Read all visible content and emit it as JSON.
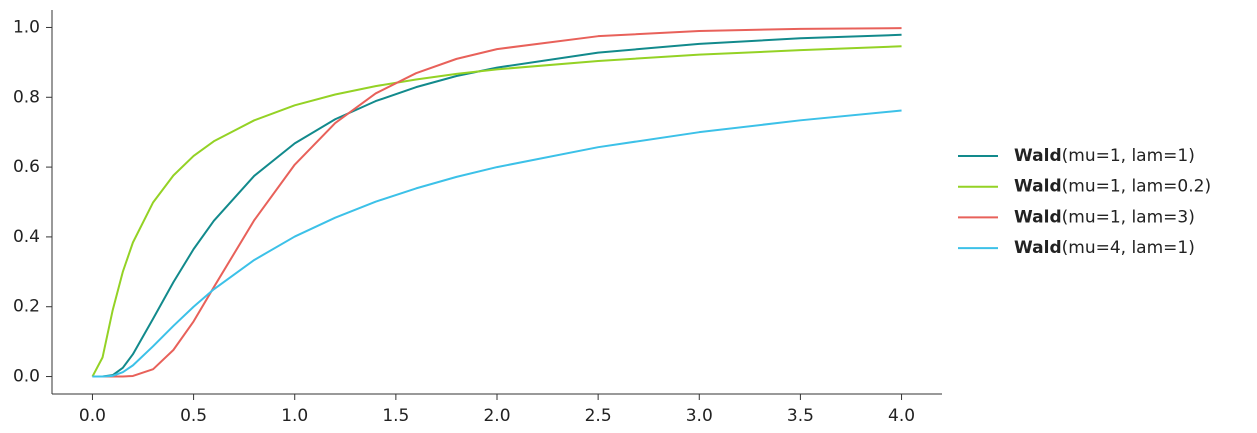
{
  "chart_data": {
    "type": "line",
    "x": [
      0,
      0.05,
      0.1,
      0.15,
      0.2,
      0.3,
      0.4,
      0.5,
      0.6,
      0.8,
      1.0,
      1.2,
      1.4,
      1.6,
      1.8,
      2.0,
      2.5,
      3.0,
      3.5,
      4.0
    ],
    "series": [
      {
        "name": "Wald(mu=1, lam=1)",
        "color": "#128a8c",
        "values": [
          0,
          2e-05,
          0.004,
          0.025,
          0.064,
          0.166,
          0.27,
          0.365,
          0.446,
          0.575,
          0.668,
          0.737,
          0.789,
          0.829,
          0.861,
          0.885,
          0.928,
          0.953,
          0.969,
          0.979
        ]
      },
      {
        "name": "Wald(mu=1, lam=0.2)",
        "color": "#94d225",
        "values": [
          0,
          0.055,
          0.19,
          0.3,
          0.384,
          0.499,
          0.576,
          0.632,
          0.674,
          0.734,
          0.777,
          0.808,
          0.832,
          0.851,
          0.867,
          0.88,
          0.904,
          0.922,
          0.935,
          0.946
        ]
      },
      {
        "name": "Wald(mu=1, lam=3)",
        "color": "#e8615a",
        "values": [
          0,
          0,
          0,
          0.0001,
          0.0017,
          0.021,
          0.076,
          0.158,
          0.256,
          0.448,
          0.607,
          0.726,
          0.811,
          0.869,
          0.91,
          0.938,
          0.975,
          0.99,
          0.996,
          0.998
        ]
      },
      {
        "name": "Wald(mu=4, lam=1)",
        "color": "#3cc1e8",
        "values": [
          0,
          0,
          0.002,
          0.0126,
          0.032,
          0.087,
          0.145,
          0.2,
          0.25,
          0.334,
          0.401,
          0.455,
          0.501,
          0.539,
          0.572,
          0.6,
          0.657,
          0.7,
          0.734,
          0.762
        ]
      }
    ],
    "xlim": [
      -0.2,
      4.2
    ],
    "xticks": [
      {
        "value": 0,
        "label": "0.0"
      },
      0.5,
      {
        "value": 1,
        "label": "1.0"
      },
      1.5,
      {
        "value": 2,
        "label": "2.0"
      },
      2.5,
      {
        "value": 3,
        "label": "3.0"
      },
      3.5,
      {
        "value": 4,
        "label": "4.0"
      }
    ],
    "ylim": [
      -0.05,
      1.05
    ],
    "yticks": [
      {
        "value": 0,
        "label": "0.0"
      },
      0.2,
      0.4,
      0.6,
      0.8,
      {
        "value": 1,
        "label": "1.0"
      }
    ],
    "grid": false,
    "legend": "right"
  }
}
